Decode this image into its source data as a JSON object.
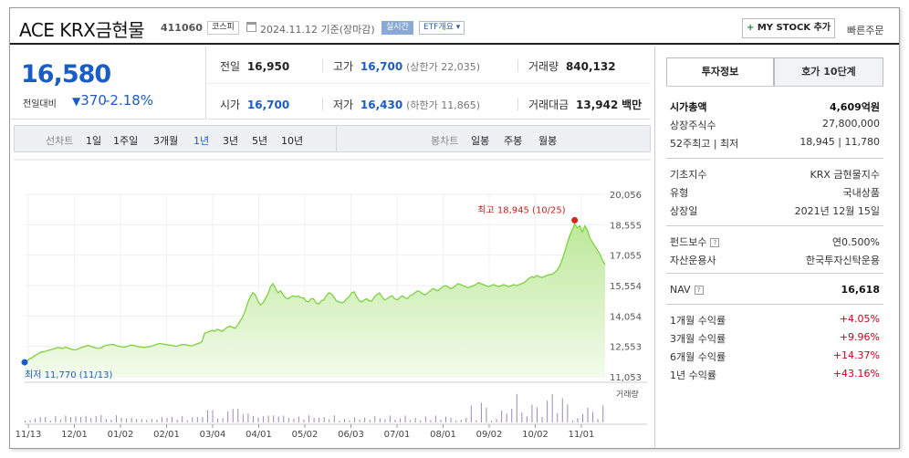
{
  "header": {
    "title": "ACE KRX금현물",
    "code": "411060",
    "market_tag": "코스피",
    "date_text": "2024.11.12 기준(장마감)",
    "live_tag": "실시간",
    "etf_tag": "ETF개요 ▾",
    "my_stock_label": "MY STOCK 추가",
    "my_stock_plus": "+",
    "quick_order": "빠른주문"
  },
  "price": {
    "current": "16,580",
    "change_label": "전일대비",
    "change_arrow": "▼",
    "change_value": "370",
    "change_pct": "-2.18%"
  },
  "stats": {
    "prev_close": {
      "label": "전일",
      "value": "16,950"
    },
    "high": {
      "label": "고가",
      "value": "16,700",
      "sub": "(상한가 22,035)"
    },
    "volume": {
      "label": "거래량",
      "value": "840,132"
    },
    "open": {
      "label": "시가",
      "value": "16,700"
    },
    "low": {
      "label": "저가",
      "value": "16,430",
      "sub": "(하한가 11,865)"
    },
    "amount": {
      "label": "거래대금",
      "value": "13,942",
      "unit": "백만"
    }
  },
  "toolbar": {
    "line_chart": "선차트",
    "periods": [
      "1일",
      "1주일",
      "3개월",
      "1년",
      "3년",
      "5년",
      "10년"
    ],
    "active_period": "1년",
    "bar_chart": "봉차트",
    "candles": [
      "일봉",
      "주봉",
      "월봉"
    ]
  },
  "chart_data": {
    "type": "area",
    "x_ticks": [
      "11/13",
      "12/01",
      "01/02",
      "02/01",
      "03/04",
      "04/01",
      "05/02",
      "06/03",
      "07/01",
      "08/01",
      "09/02",
      "10/02",
      "11/01"
    ],
    "y_ticks": [
      "20,056",
      "18,555",
      "17,055",
      "15,554",
      "14,054",
      "12,553",
      "11,053"
    ],
    "ylim": [
      11053,
      20056
    ],
    "max_label": "최고 18,945 (10/25)",
    "min_label": "최저 11,770 (11/13)",
    "volume_label": "거래량",
    "accent": "#7dd23f",
    "series": [
      {
        "values": [
          11770,
          11850,
          11950,
          12000,
          12100,
          12150,
          12250,
          12280,
          12300,
          12350,
          12380,
          12420,
          12450,
          12500,
          12480,
          12450,
          12520,
          12480,
          12430,
          12400,
          12380,
          12420,
          12480,
          12520,
          12550,
          12600,
          12560,
          12520,
          12480,
          12450,
          12480,
          12550,
          12600,
          12620,
          12650,
          12640,
          12600,
          12560,
          12540,
          12520,
          12540,
          12580,
          12620,
          12600,
          12560,
          12540,
          12520,
          12500,
          12520,
          12540,
          12560,
          12600,
          12650,
          12700,
          12680,
          12660,
          12640,
          12620,
          12600,
          12580,
          12560,
          12600,
          12650,
          12640,
          12620,
          12600,
          12580,
          12620,
          12680,
          12720,
          12800,
          13200,
          13250,
          13300,
          13350,
          13300,
          13400,
          13350,
          13300,
          13400,
          13500,
          13550,
          13500,
          13450,
          13600,
          13800,
          14000,
          14300,
          14700,
          15000,
          15200,
          15100,
          14800,
          14600,
          14700,
          14900,
          15150,
          15500,
          15650,
          15400,
          15200,
          15300,
          15100,
          14950,
          14900,
          15000,
          15050,
          15000,
          15050,
          14950,
          14950,
          14800,
          14750,
          14900,
          14900,
          14700,
          14650,
          14800,
          14850,
          15050,
          15200,
          15150,
          15000,
          14800,
          14750,
          14700,
          14750,
          14900,
          15000,
          15200,
          15250,
          15000,
          14800,
          14750,
          14850,
          14900,
          14800,
          14800,
          15000,
          15100,
          15200,
          15000,
          14850,
          14900,
          15000,
          15050,
          14900,
          14850,
          14950,
          15050,
          14950,
          14900,
          15050,
          15100,
          15200,
          15300,
          15250,
          15150,
          15100,
          15200,
          15300,
          15400,
          15350,
          15300,
          15400,
          15500,
          15550,
          15500,
          15400,
          15450,
          15550,
          15650,
          15600,
          15550,
          15500,
          15450,
          15500,
          15550,
          15600,
          15700,
          15650,
          15600,
          15550,
          15500,
          15550,
          15600,
          15550,
          15500,
          15550,
          15600,
          15550,
          15500,
          15550,
          15600,
          15550,
          15600,
          15650,
          15700,
          15800,
          15900,
          16000,
          15950,
          16050,
          16000,
          15950,
          16000,
          16050,
          16100,
          16100,
          16200,
          16300,
          16500,
          16800,
          17200,
          17600,
          18000,
          18300,
          18600,
          18400,
          18500,
          18200,
          18500,
          18300,
          17900,
          17700,
          17500,
          17300,
          17100,
          16800,
          16580
        ]
      }
    ]
  },
  "right_panel": {
    "tab_invest": "투자정보",
    "tab_quote": "호가 10단계",
    "market_cap": {
      "label": "시가총액",
      "value": "4,609억원"
    },
    "shares": {
      "label": "상장주식수",
      "value": "27,800,000"
    },
    "week52": {
      "label": "52주최고 | 최저",
      "value": "18,945 | 11,780"
    },
    "base_index": {
      "label": "기초지수",
      "value": "KRX 금현물지수"
    },
    "type": {
      "label": "유형",
      "value": "국내상품"
    },
    "listed": {
      "label": "상장일",
      "value": "2021년 12월 15일"
    },
    "fee": {
      "label": "펀드보수",
      "value": "연0.500%"
    },
    "manager": {
      "label": "자산운용사",
      "value": "한국투자신탁운용"
    },
    "nav": {
      "label": "NAV",
      "value": "16,618"
    },
    "returns": [
      {
        "label": "1개월 수익률",
        "value": "+4.05%"
      },
      {
        "label": "3개월 수익률",
        "value": "+9.96%"
      },
      {
        "label": "6개월 수익률",
        "value": "+14.37%"
      },
      {
        "label": "1년 수익률",
        "value": "+43.16%"
      }
    ]
  }
}
